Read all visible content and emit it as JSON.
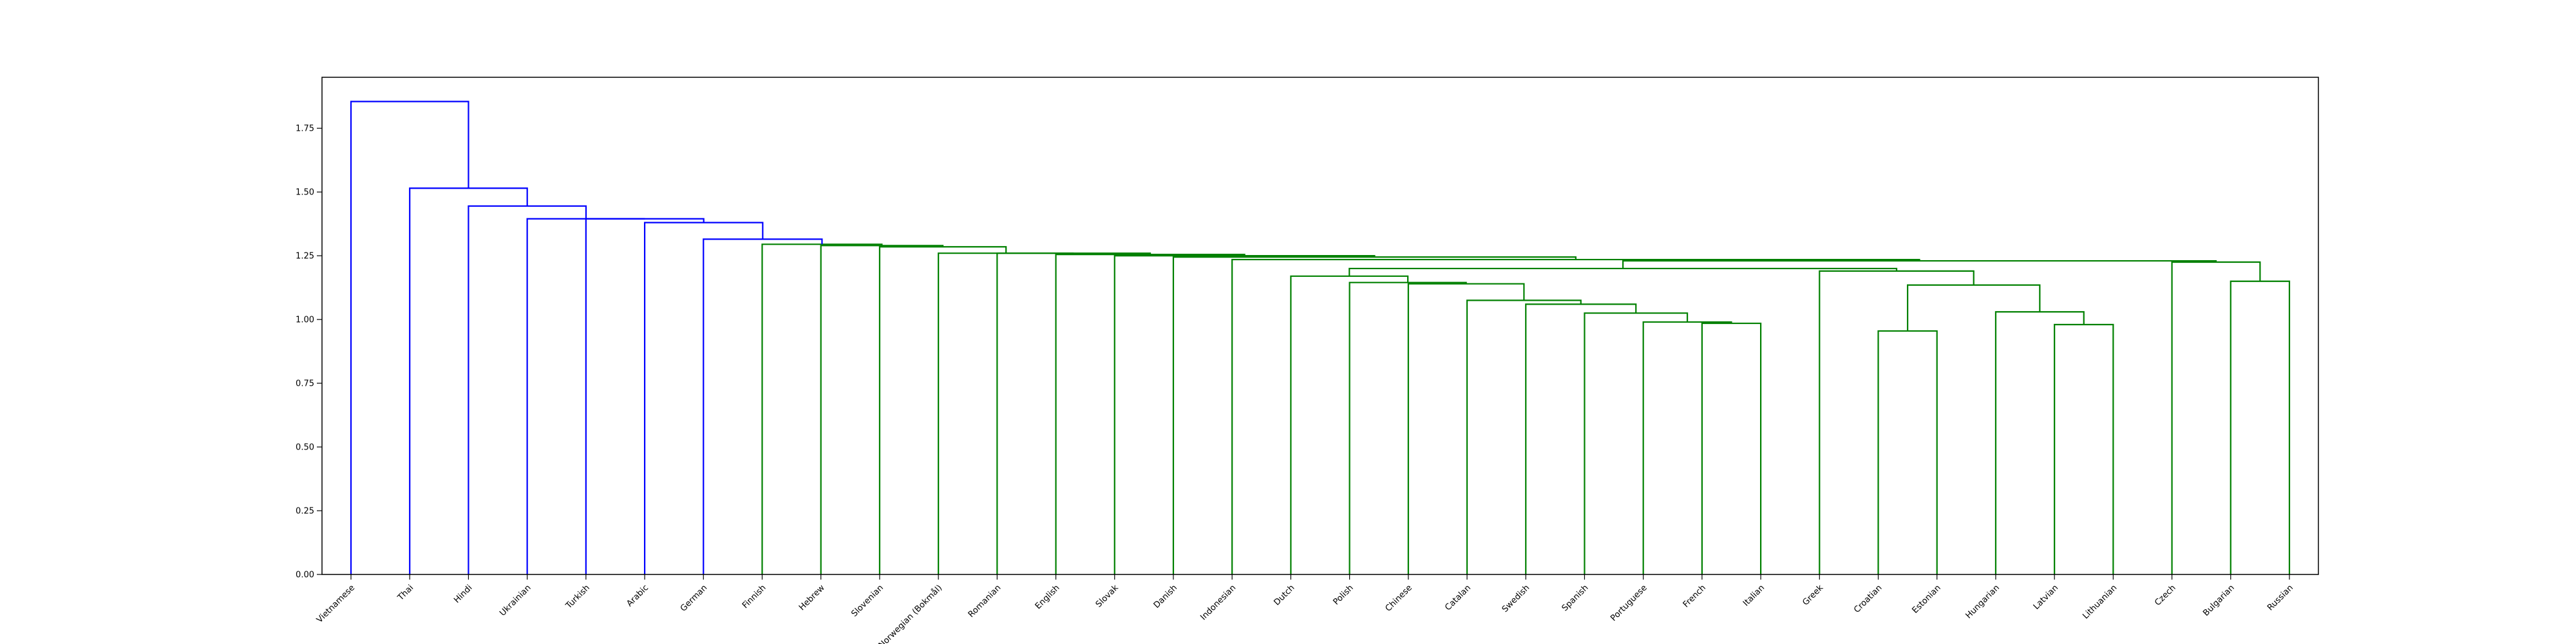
{
  "chart_data": {
    "type": "dendrogram",
    "title": "",
    "xlabel": "",
    "ylabel": "",
    "ylim": [
      0,
      1.95
    ],
    "y_ticks": [
      "0.00",
      "0.25",
      "0.50",
      "0.75",
      "1.00",
      "1.25",
      "1.50",
      "1.75"
    ],
    "y_tick_values": [
      0,
      0.25,
      0.5,
      0.75,
      1.0,
      1.25,
      1.5,
      1.75
    ],
    "colors": {
      "above_threshold": "#0000ff",
      "cluster": "#008000",
      "axes": "#000000"
    },
    "leaves": [
      "Vietnamese",
      "Thai",
      "Hindi",
      "Ukrainian",
      "Turkish",
      "Arabic",
      "German",
      "Finnish",
      "Hebrew",
      "Slovenian",
      "Norwegian (Bokmål)",
      "Romanian",
      "English",
      "Slovak",
      "Danish",
      "Indonesian",
      "Dutch",
      "Polish",
      "Chinese",
      "Catalan",
      "Swedish",
      "Spanish",
      "Portuguese",
      "French",
      "Italian",
      "Greek",
      "Croatian",
      "Estonian",
      "Hungarian",
      "Latvian",
      "Lithuanian",
      "Czech",
      "Bulgarian",
      "Russian"
    ],
    "merges": [
      {
        "left": "French",
        "right": "Italian",
        "height": 0.985,
        "color": "green"
      },
      {
        "left": "Portuguese",
        "right": "French+Italian",
        "height": 0.99,
        "color": "green"
      },
      {
        "left": "Spanish",
        "right": "Portuguese+French+Italian",
        "height": 1.025,
        "color": "green"
      },
      {
        "left": "Swedish",
        "right": "Spanish+Portuguese+French+Italian",
        "height": 1.06,
        "color": "green"
      },
      {
        "left": "Catalan",
        "right": "Swedish+Spanish+Portuguese+French+Italian",
        "height": 1.075,
        "color": "green"
      },
      {
        "left": "Chinese",
        "right": "Catalan+Swedish+Spanish+Portuguese+French+Italian",
        "height": 1.14,
        "color": "green"
      },
      {
        "left": "Polish",
        "right": "Chinese+...",
        "height": 1.145,
        "color": "green"
      },
      {
        "left": "Dutch",
        "right": "Polish+...",
        "height": 1.17,
        "color": "green"
      },
      {
        "left": "Croatian",
        "right": "Estonian",
        "height": 0.955,
        "color": "green"
      },
      {
        "left": "Latvian",
        "right": "Lithuanian",
        "height": 0.98,
        "color": "green"
      },
      {
        "left": "Hungarian",
        "right": "Latvian+Lithuanian",
        "height": 1.03,
        "color": "green"
      },
      {
        "left": "Croatian+Estonian",
        "right": "Hungarian+Latvian+Lithuanian",
        "height": 1.135,
        "color": "green"
      },
      {
        "left": "Greek",
        "right": "Croatian+Estonian+Hungarian+Latvian+Lithuanian",
        "height": 1.19,
        "color": "green"
      },
      {
        "left": "Dutch cluster",
        "right": "Greek cluster",
        "height": 1.2,
        "color": "green"
      },
      {
        "left": "Bulgarian",
        "right": "Russian",
        "height": 1.15,
        "color": "green"
      },
      {
        "left": "Czech",
        "right": "Bulgarian+Russian",
        "height": 1.225,
        "color": "green"
      },
      {
        "left": "Dutch+Greek clusters",
        "right": "Czech cluster",
        "height": 1.23,
        "color": "green"
      },
      {
        "left": "Indonesian",
        "right": "Dutch+Greek+Czech clusters",
        "height": 1.235,
        "color": "green"
      },
      {
        "left": "Danish",
        "right": "Indonesian+...",
        "height": 1.245,
        "color": "green"
      },
      {
        "left": "Slovak",
        "right": "Danish+...",
        "height": 1.25,
        "color": "green"
      },
      {
        "left": "English",
        "right": "Slovak+...",
        "height": 1.255,
        "color": "green"
      },
      {
        "left": "Romanian",
        "right": "English+...",
        "height": 1.26,
        "color": "green"
      },
      {
        "left": "Norwegian (Bokmål)",
        "right": "Romanian+...",
        "height": 1.26,
        "color": "green"
      },
      {
        "left": "Slovenian",
        "right": "Norwegian (Bokmål)+...",
        "height": 1.285,
        "color": "green"
      },
      {
        "left": "Hebrew",
        "right": "Slovenian+...",
        "height": 1.29,
        "color": "green"
      },
      {
        "left": "Finnish",
        "right": "Hebrew+...",
        "height": 1.295,
        "color": "green"
      },
      {
        "left": "German",
        "right": "Finnish+...",
        "height": 1.315,
        "color": "blue"
      },
      {
        "left": "Arabic",
        "right": "German+...",
        "height": 1.38,
        "color": "blue"
      },
      {
        "left": "Turkish",
        "right": "Arabic+...",
        "height": 1.395,
        "color": "blue"
      },
      {
        "left": "Ukrainian",
        "right": "Turkish+...",
        "height": 1.395,
        "color": "blue"
      },
      {
        "left": "Hindi",
        "right": "Ukrainian+...",
        "height": 1.445,
        "color": "blue"
      },
      {
        "left": "Thai",
        "right": "Hindi+...",
        "height": 1.515,
        "color": "blue"
      },
      {
        "left": "Vietnamese",
        "right": "Thai+...",
        "height": 1.855,
        "color": "blue"
      }
    ]
  }
}
